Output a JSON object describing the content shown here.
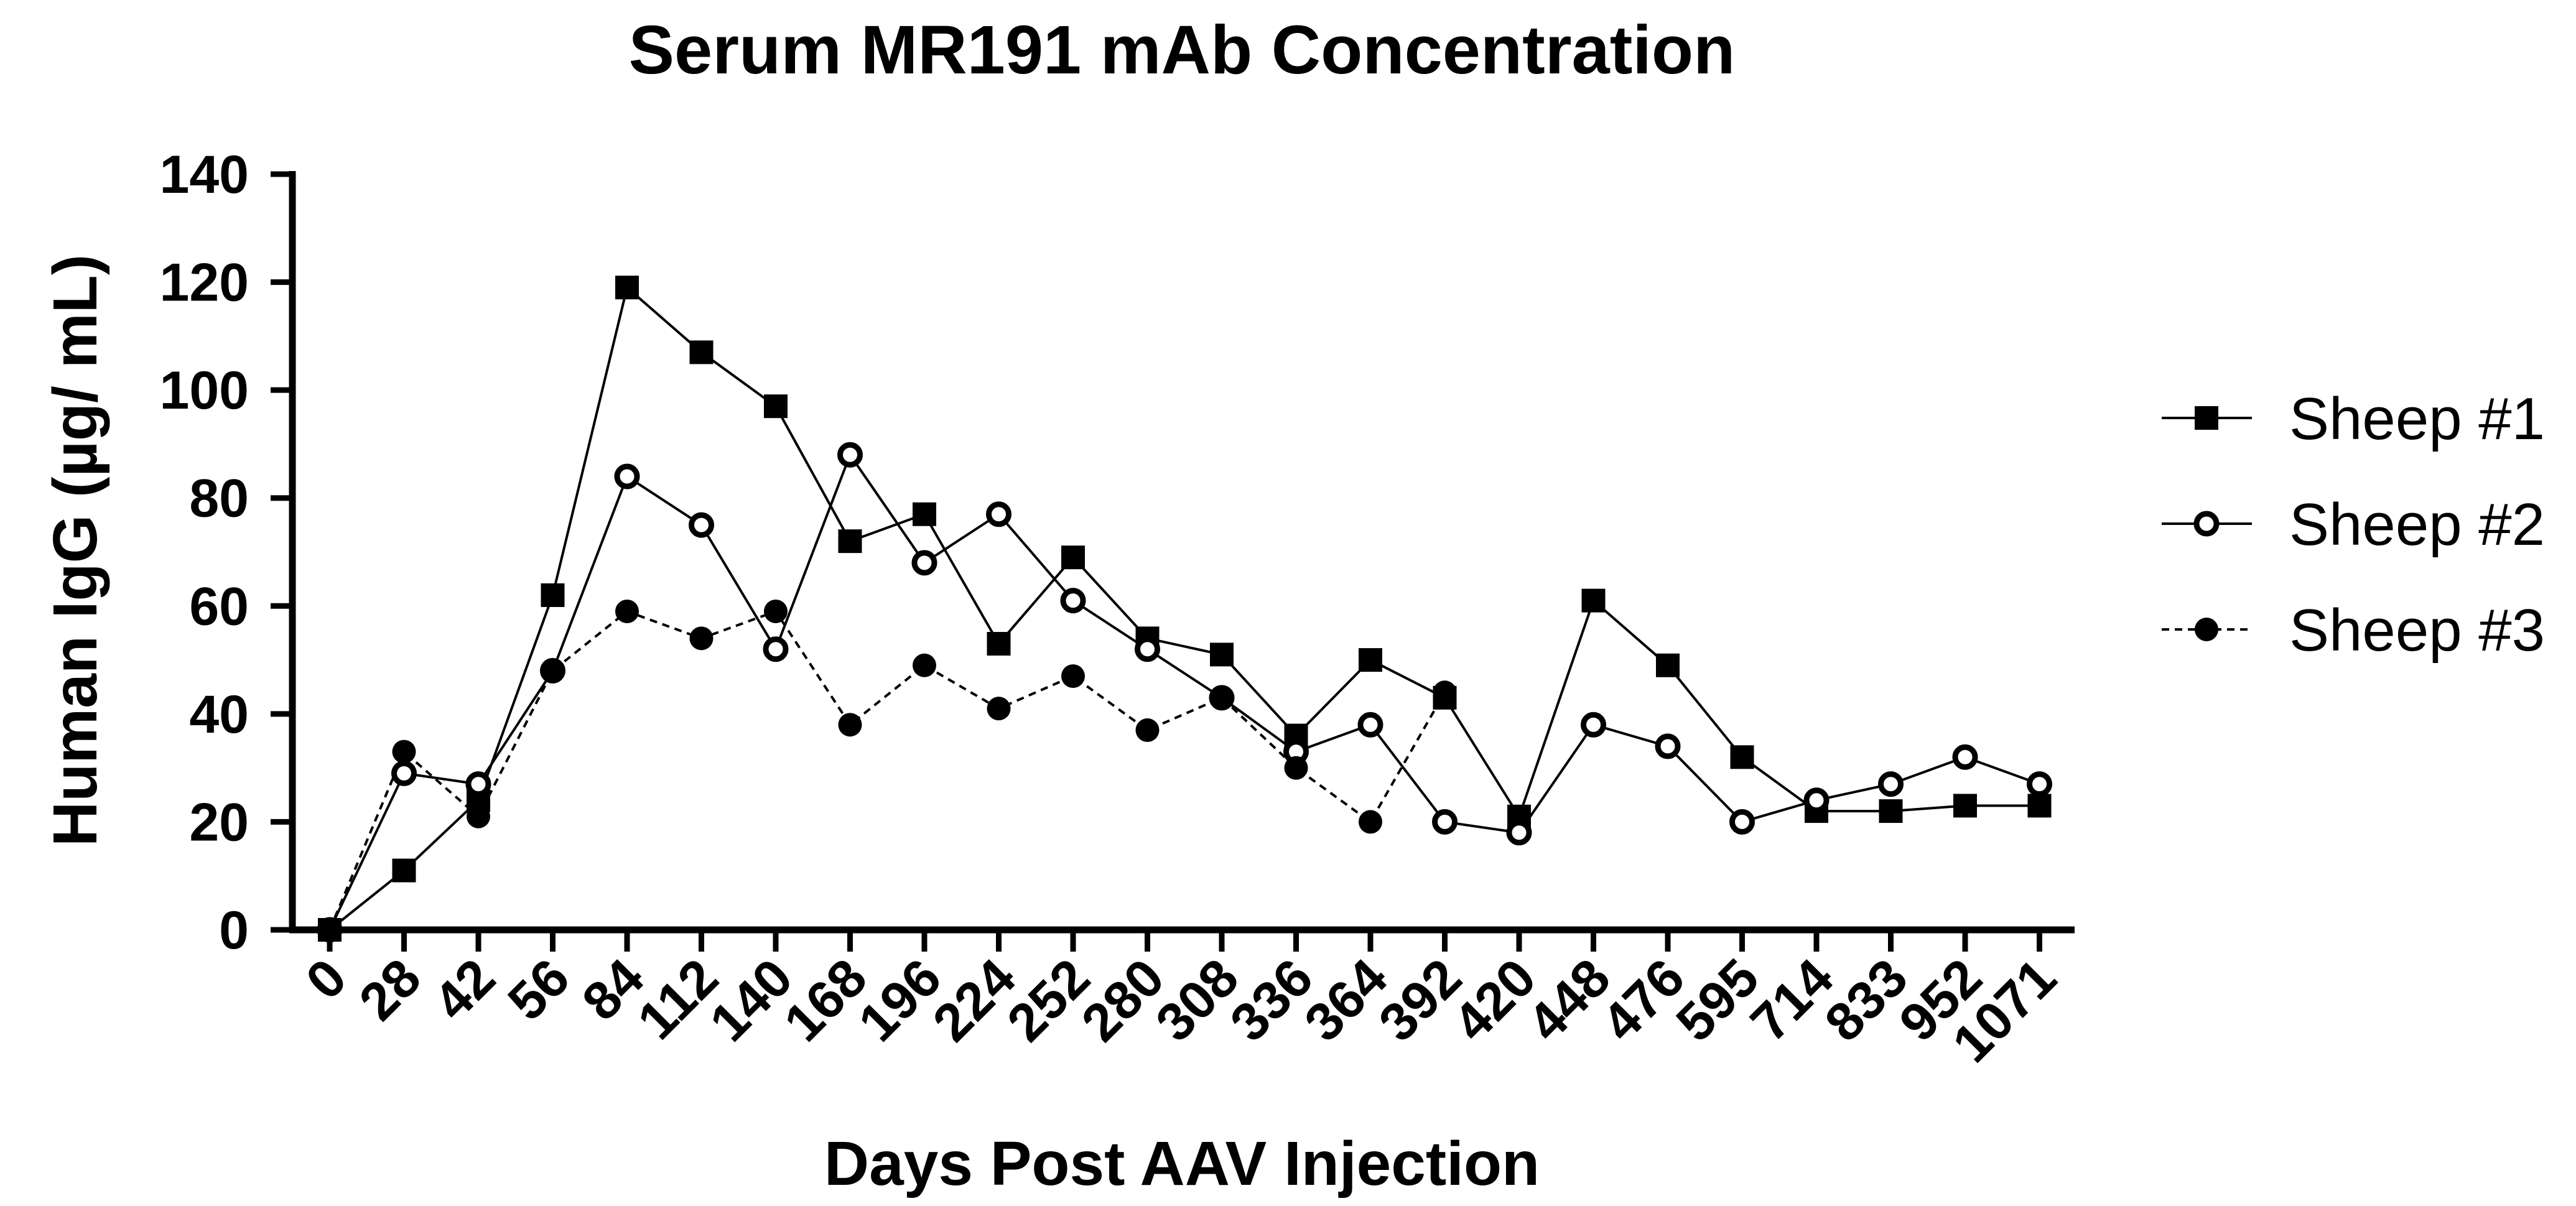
{
  "chart_data": {
    "type": "line",
    "title": "Serum MR191 mAb Concentration",
    "xlabel": "Days Post AAV Injection",
    "ylabel": "Human IgG (µg/ mL)",
    "ylim": [
      0,
      140
    ],
    "yticks": [
      "0",
      "20",
      "40",
      "60",
      "80",
      "100",
      "120",
      "140"
    ],
    "categories": [
      "0",
      "28",
      "42",
      "56",
      "84",
      "112",
      "140",
      "168",
      "196",
      "224",
      "252",
      "280",
      "308",
      "336",
      "364",
      "392",
      "420",
      "448",
      "476",
      "595",
      "714",
      "833",
      "952",
      "1071"
    ],
    "legend_position": "right",
    "series": [
      {
        "name": "Sheep #1",
        "marker": "square-filled",
        "line": "solid",
        "values": [
          0,
          11,
          24,
          62,
          119,
          107,
          97,
          72,
          77,
          53,
          69,
          54,
          51,
          36,
          50,
          43,
          21,
          61,
          49,
          32,
          22,
          22,
          23,
          23
        ]
      },
      {
        "name": "Sheep #2",
        "marker": "circle-open",
        "line": "solid",
        "values": [
          0,
          29,
          27,
          48,
          84,
          75,
          52,
          88,
          68,
          77,
          61,
          52,
          43,
          33,
          38,
          20,
          18,
          38,
          34,
          20,
          24,
          27,
          32,
          27
        ]
      },
      {
        "name": "Sheep #3",
        "marker": "circle-filled",
        "line": "dashed",
        "values": [
          0,
          33,
          21,
          48,
          59,
          54,
          59,
          38,
          49,
          41,
          47,
          37,
          43,
          30,
          20,
          44,
          null,
          null,
          null,
          null,
          null,
          null,
          null,
          null
        ]
      }
    ]
  }
}
